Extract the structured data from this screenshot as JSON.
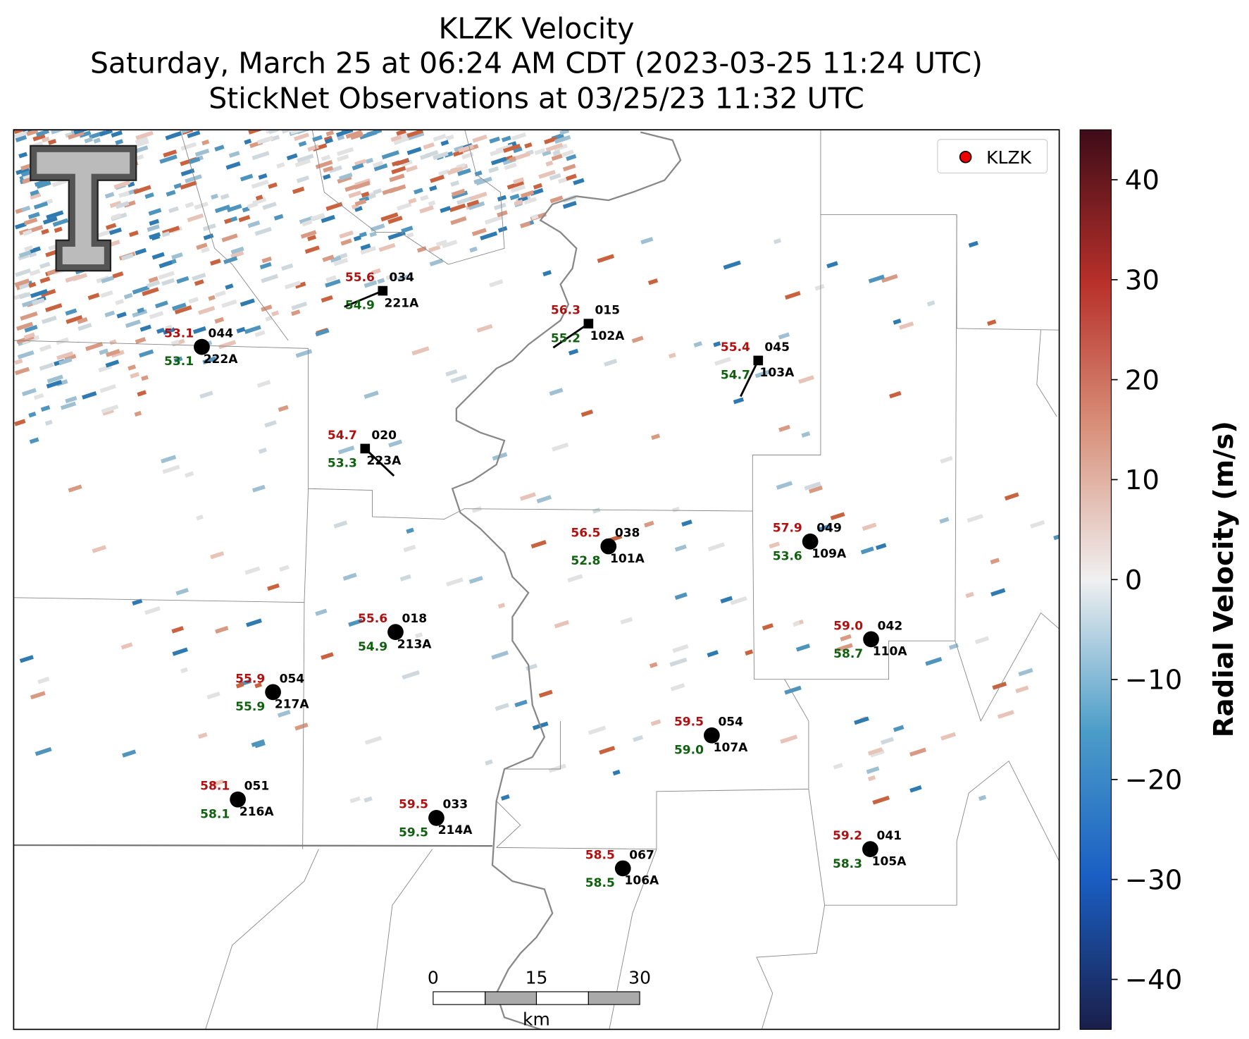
{
  "title": [
    "KLZK Velocity",
    "Saturday, March 25 at 06:24 AM CDT (2023-03-25 11:24 UTC)",
    "StickNet Observations at 03/25/23 11:32 UTC"
  ],
  "legend": "KLZK",
  "colorbar": {
    "label": "Radial Velocity (m/s)",
    "lim": [
      -45,
      45
    ],
    "ticks": [
      40,
      30,
      20,
      10,
      0,
      {
        "value": -10,
        "label": "−10"
      },
      {
        "value": -20,
        "label": "−20"
      },
      {
        "value": -30,
        "label": "−30"
      },
      {
        "value": -40,
        "label": "−40"
      }
    ]
  },
  "scale_bar": {
    "ticks": [
      0,
      15,
      30
    ],
    "unit": "km"
  },
  "stations": [
    {
      "temp": "55.6",
      "dewpoint": "54.9",
      "wind_dir": "034",
      "id": "221A"
    },
    {
      "temp": "53.1",
      "dewpoint": "53.1",
      "wind_dir": "044",
      "id": "222A"
    },
    {
      "temp": "56.3",
      "dewpoint": "55.2",
      "wind_dir": "015",
      "id": "102A"
    },
    {
      "temp": "55.4",
      "dewpoint": "54.7",
      "wind_dir": "045",
      "id": "103A"
    },
    {
      "temp": "54.7",
      "dewpoint": "53.3",
      "wind_dir": "020",
      "id": "223A"
    },
    {
      "temp": "56.5",
      "dewpoint": "52.8",
      "wind_dir": "038",
      "id": "101A"
    },
    {
      "temp": "57.9",
      "dewpoint": "53.6",
      "wind_dir": "049",
      "id": "109A"
    },
    {
      "temp": "55.6",
      "dewpoint": "54.9",
      "wind_dir": "018",
      "id": "213A"
    },
    {
      "temp": "59.0",
      "dewpoint": "58.7",
      "wind_dir": "042",
      "id": "110A"
    },
    {
      "temp": "55.9",
      "dewpoint": "55.9",
      "wind_dir": "054",
      "id": "217A"
    },
    {
      "temp": "59.5",
      "dewpoint": "59.0",
      "wind_dir": "054",
      "id": "107A"
    },
    {
      "temp": "58.1",
      "dewpoint": "58.1",
      "wind_dir": "051",
      "id": "216A"
    },
    {
      "temp": "59.5",
      "dewpoint": "59.5",
      "wind_dir": "033",
      "id": "214A"
    },
    {
      "temp": "58.5",
      "dewpoint": "58.5",
      "wind_dir": "067",
      "id": "106A"
    },
    {
      "temp": "59.2",
      "dewpoint": "58.3",
      "wind_dir": "041",
      "id": "105A"
    }
  ]
}
